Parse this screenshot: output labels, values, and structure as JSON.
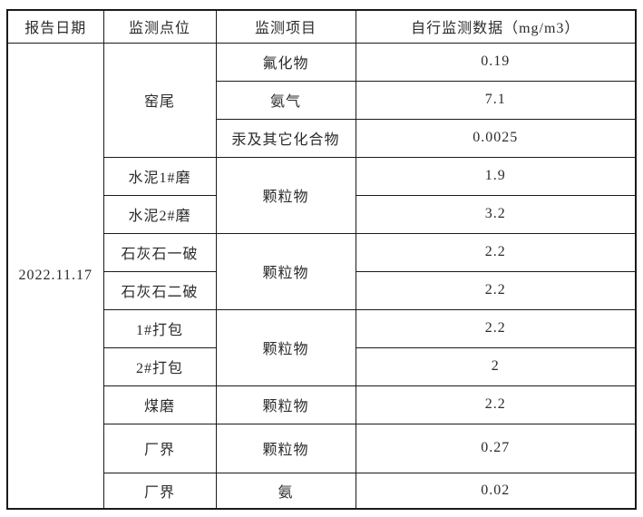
{
  "table": {
    "columns": [
      "报告日期",
      "监测点位",
      "监测项目",
      "自行监测数据（mg/m3）"
    ],
    "report_date": "2022.11.17",
    "rows": [
      {
        "point": "窑尾",
        "point_rowspan": 3,
        "item": "氟化物",
        "item_rowspan": 1,
        "value": "0.19"
      },
      {
        "item": "氨气",
        "item_rowspan": 1,
        "value": "7.1"
      },
      {
        "item": "汞及其它化合物",
        "item_rowspan": 1,
        "value": "0.0025"
      },
      {
        "point": "水泥1#磨",
        "point_rowspan": 1,
        "item": "颗粒物",
        "item_rowspan": 2,
        "value": "1.9"
      },
      {
        "point": "水泥2#磨",
        "point_rowspan": 1,
        "value": "3.2"
      },
      {
        "point": "石灰石一破",
        "point_rowspan": 1,
        "item": "颗粒物",
        "item_rowspan": 2,
        "value": "2.2"
      },
      {
        "point": "石灰石二破",
        "point_rowspan": 1,
        "value": "2.2"
      },
      {
        "point": "1#打包",
        "point_rowspan": 1,
        "item": "颗粒物",
        "item_rowspan": 2,
        "value": "2.2"
      },
      {
        "point": "2#打包",
        "point_rowspan": 1,
        "value": "2"
      },
      {
        "point": "煤磨",
        "point_rowspan": 1,
        "item": "颗粒物",
        "item_rowspan": 1,
        "value": "2.2"
      },
      {
        "point": "厂界",
        "point_rowspan": 1,
        "item": "颗粒物",
        "item_rowspan": 1,
        "value": "0.27"
      },
      {
        "point": "厂界",
        "point_rowspan": 1,
        "item": "氨",
        "item_rowspan": 1,
        "value": "0.02"
      }
    ],
    "colors": {
      "border": "#1a1a1a",
      "text": "#2b2b2b",
      "background": "#ffffff"
    }
  }
}
